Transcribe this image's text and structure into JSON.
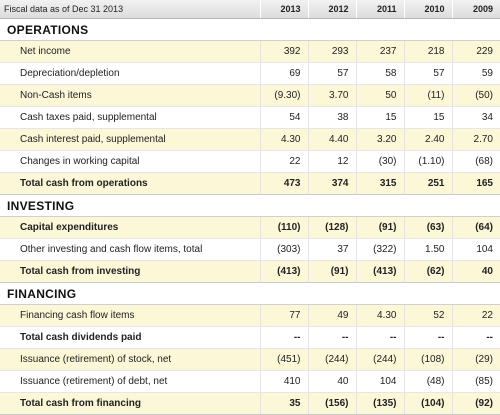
{
  "header": {
    "label": "Fiscal data as of Dec 31 2013",
    "years": [
      "2013",
      "2012",
      "2011",
      "2010",
      "2009"
    ]
  },
  "sections": [
    {
      "title": "OPERATIONS",
      "rows": [
        {
          "label": "Net income",
          "values": [
            "392",
            "293",
            "237",
            "218",
            "229"
          ],
          "bold": false
        },
        {
          "label": "Depreciation/depletion",
          "values": [
            "69",
            "57",
            "58",
            "57",
            "59"
          ],
          "bold": false
        },
        {
          "label": "Non-Cash items",
          "values": [
            "(9.30)",
            "3.70",
            "50",
            "(11)",
            "(50)"
          ],
          "bold": false
        },
        {
          "label": "Cash taxes paid, supplemental",
          "values": [
            "54",
            "38",
            "15",
            "15",
            "34"
          ],
          "bold": false
        },
        {
          "label": "Cash interest paid, supplemental",
          "values": [
            "4.30",
            "4.40",
            "3.20",
            "2.40",
            "2.70"
          ],
          "bold": false
        },
        {
          "label": "Changes in working capital",
          "values": [
            "22",
            "12",
            "(30)",
            "(1.10)",
            "(68)"
          ],
          "bold": false
        },
        {
          "label": "Total cash from operations",
          "values": [
            "473",
            "374",
            "315",
            "251",
            "165"
          ],
          "bold": true
        }
      ]
    },
    {
      "title": "INVESTING",
      "rows": [
        {
          "label": "Capital expenditures",
          "values": [
            "(110)",
            "(128)",
            "(91)",
            "(63)",
            "(64)"
          ],
          "bold": true
        },
        {
          "label": "Other investing and cash flow items, total",
          "values": [
            "(303)",
            "37",
            "(322)",
            "1.50",
            "104"
          ],
          "bold": false
        },
        {
          "label": "Total cash from investing",
          "values": [
            "(413)",
            "(91)",
            "(413)",
            "(62)",
            "40"
          ],
          "bold": true
        }
      ]
    },
    {
      "title": "FINANCING",
      "rows": [
        {
          "label": "Financing cash flow items",
          "values": [
            "77",
            "49",
            "4.30",
            "52",
            "22"
          ],
          "bold": false
        },
        {
          "label": "Total cash dividends paid",
          "values": [
            "--",
            "--",
            "--",
            "--",
            "--"
          ],
          "bold": true
        },
        {
          "label": "Issuance (retirement) of stock, net",
          "values": [
            "(451)",
            "(244)",
            "(244)",
            "(108)",
            "(29)"
          ],
          "bold": false
        },
        {
          "label": "Issuance (retirement) of debt, net",
          "values": [
            "410",
            "40",
            "104",
            "(48)",
            "(85)"
          ],
          "bold": false
        },
        {
          "label": "Total cash from financing",
          "values": [
            "35",
            "(156)",
            "(135)",
            "(104)",
            "(92)"
          ],
          "bold": true
        }
      ]
    }
  ]
}
